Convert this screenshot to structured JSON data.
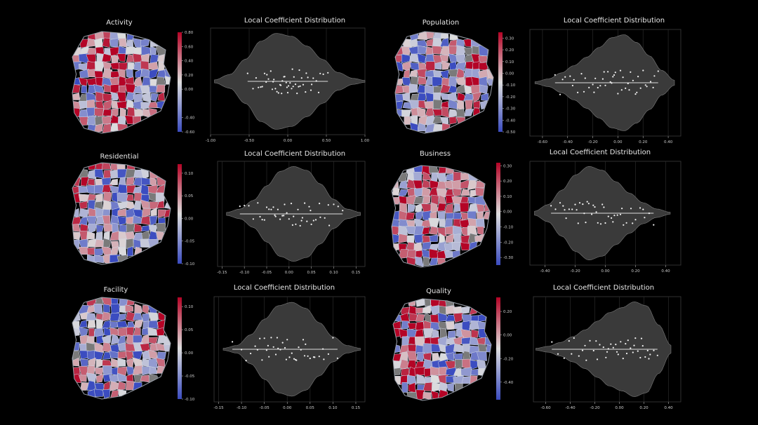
{
  "colors": {
    "background": "#000000",
    "violin_fill": "#3a3a3a",
    "violin_edge": "#7a7a7a",
    "points": "#f2f2f2",
    "plot_border": "#3c3c3c",
    "grid": "#2a2a2a",
    "map_neg": "#3b4cc0",
    "map_mid": "#dddddd",
    "map_pos": "#b40426",
    "map_missing": "#7a7a7a"
  },
  "chart_data": [
    {
      "type": "violin",
      "map_title": "Activity",
      "title": "Local Coefficient Distribution",
      "xlim": [
        -1.0,
        1.0
      ],
      "xticks": [
        "-1.00",
        "-0.50",
        "0.00",
        "0.50",
        "1.00"
      ],
      "xtick_values": [
        -1.0,
        -0.5,
        0.0,
        0.5,
        1.0
      ],
      "colorbar": {
        "range": [
          -0.6,
          0.8
        ],
        "ticks": [
          "0.80",
          "0.60",
          "0.40",
          "0.20",
          "0.00",
          "-0.40",
          "-0.60"
        ],
        "tick_values": [
          0.8,
          0.6,
          0.4,
          0.2,
          0.0,
          -0.4,
          -0.6
        ]
      },
      "density": {
        "x": [
          -0.95,
          -0.75,
          -0.55,
          -0.35,
          -0.15,
          0.05,
          0.25,
          0.45,
          0.65,
          0.85,
          1.0
        ],
        "y": [
          0.03,
          0.14,
          0.45,
          0.82,
          0.98,
          0.92,
          0.72,
          0.45,
          0.18,
          0.06,
          0.02
        ]
      },
      "values": [
        -0.52,
        -0.45,
        -0.41,
        -0.38,
        -0.33,
        -0.3,
        -0.28,
        -0.25,
        -0.22,
        -0.2,
        -0.18,
        -0.16,
        -0.14,
        -0.12,
        -0.1,
        -0.08,
        -0.07,
        -0.05,
        -0.04,
        -0.02,
        0.0,
        0.01,
        0.03,
        0.05,
        0.06,
        0.08,
        0.1,
        0.12,
        0.14,
        0.16,
        0.18,
        0.2,
        0.23,
        0.26,
        0.3,
        0.33,
        0.37,
        0.42,
        0.46,
        0.52,
        -0.35,
        -0.27,
        -0.19,
        -0.09,
        -0.01,
        0.07,
        0.15,
        0.24,
        0.31,
        0.4
      ]
    },
    {
      "type": "violin",
      "map_title": "Population",
      "title": "Local Coefficient Distribution",
      "xlim": [
        -0.7,
        0.5
      ],
      "xticks": [
        "-0.60",
        "-0.40",
        "-0.20",
        "0.00",
        "0.20",
        "0.40"
      ],
      "xtick_values": [
        -0.6,
        -0.4,
        -0.2,
        0.0,
        0.2,
        0.4
      ],
      "colorbar": {
        "range": [
          -0.5,
          0.35
        ],
        "ticks": [
          "0.30",
          "0.20",
          "0.10",
          "0.00",
          "-0.10",
          "-0.20",
          "-0.30",
          "-0.40",
          "-0.50"
        ],
        "tick_values": [
          0.3,
          0.2,
          0.1,
          0.0,
          -0.1,
          -0.2,
          -0.3,
          -0.4,
          -0.5
        ]
      },
      "density": {
        "x": [
          -0.66,
          -0.55,
          -0.45,
          -0.35,
          -0.25,
          -0.15,
          -0.05,
          0.05,
          0.15,
          0.25,
          0.35,
          0.45
        ],
        "y": [
          0.02,
          0.08,
          0.2,
          0.35,
          0.52,
          0.72,
          0.92,
          0.98,
          0.82,
          0.55,
          0.25,
          0.05
        ]
      },
      "values": [
        -0.5,
        -0.46,
        -0.42,
        -0.38,
        -0.35,
        -0.32,
        -0.29,
        -0.26,
        -0.23,
        -0.2,
        -0.18,
        -0.16,
        -0.14,
        -0.12,
        -0.1,
        -0.08,
        -0.06,
        -0.05,
        -0.03,
        -0.02,
        0.0,
        0.02,
        0.04,
        0.06,
        0.08,
        0.1,
        0.12,
        0.14,
        0.16,
        0.18,
        0.2,
        0.23,
        0.26,
        0.29,
        0.32,
        -0.44,
        -0.36,
        -0.27,
        -0.19,
        -0.11,
        -0.04,
        0.03,
        0.09,
        0.15,
        0.22,
        0.28
      ]
    },
    {
      "type": "violin",
      "map_title": "Residential",
      "title": "Local Coefficient Distribution",
      "xlim": [
        -0.16,
        0.17
      ],
      "xticks": [
        "-0.15",
        "-0.10",
        "-0.05",
        "0.00",
        "0.05",
        "0.10",
        "0.15"
      ],
      "xtick_values": [
        -0.15,
        -0.1,
        -0.05,
        0.0,
        0.05,
        0.1,
        0.15
      ],
      "colorbar": {
        "range": [
          -0.1,
          0.12
        ],
        "ticks": [
          "0.10",
          "0.05",
          "0.00",
          "-0.05",
          "-0.10"
        ],
        "tick_values": [
          0.1,
          0.05,
          0.0,
          -0.05,
          -0.1
        ]
      },
      "density": {
        "x": [
          -0.14,
          -0.11,
          -0.08,
          -0.05,
          -0.02,
          0.01,
          0.04,
          0.07,
          0.1,
          0.13,
          0.16
        ],
        "y": [
          0.03,
          0.1,
          0.28,
          0.58,
          0.88,
          0.98,
          0.9,
          0.62,
          0.3,
          0.1,
          0.03
        ]
      },
      "values": [
        -0.11,
        -0.1,
        -0.09,
        -0.08,
        -0.07,
        -0.065,
        -0.06,
        -0.05,
        -0.045,
        -0.04,
        -0.035,
        -0.03,
        -0.025,
        -0.02,
        -0.015,
        -0.01,
        -0.005,
        0.0,
        0.005,
        0.01,
        0.015,
        0.02,
        0.025,
        0.03,
        0.035,
        0.04,
        0.045,
        0.05,
        0.055,
        0.06,
        0.07,
        0.08,
        0.09,
        0.1,
        0.11,
        0.12,
        -0.055,
        -0.032,
        -0.012,
        0.008,
        0.028,
        0.048,
        0.068,
        0.088
      ]
    },
    {
      "type": "violin",
      "map_title": "Business",
      "title": "Local Coefficient Distribution",
      "xlim": [
        -0.5,
        0.5
      ],
      "xticks": [
        "-0.40",
        "-0.20",
        "0.00",
        "0.20",
        "0.40"
      ],
      "xtick_values": [
        -0.4,
        -0.2,
        0.0,
        0.2,
        0.4
      ],
      "colorbar": {
        "range": [
          -0.35,
          0.32
        ],
        "ticks": [
          "0.30",
          "0.20",
          "0.10",
          "0.00",
          "-0.10",
          "-0.20",
          "-0.30"
        ],
        "tick_values": [
          0.3,
          0.2,
          0.1,
          0.0,
          -0.1,
          -0.2,
          -0.3
        ]
      },
      "density": {
        "x": [
          -0.47,
          -0.38,
          -0.29,
          -0.2,
          -0.11,
          -0.02,
          0.07,
          0.16,
          0.25,
          0.34,
          0.43
        ],
        "y": [
          0.04,
          0.18,
          0.48,
          0.8,
          0.98,
          0.9,
          0.66,
          0.42,
          0.22,
          0.09,
          0.02
        ]
      },
      "values": [
        -0.36,
        -0.33,
        -0.3,
        -0.28,
        -0.26,
        -0.24,
        -0.22,
        -0.2,
        -0.18,
        -0.17,
        -0.15,
        -0.14,
        -0.12,
        -0.11,
        -0.09,
        -0.08,
        -0.06,
        -0.05,
        -0.03,
        -0.02,
        0.0,
        0.02,
        0.04,
        0.06,
        0.08,
        0.1,
        0.12,
        0.14,
        0.17,
        0.2,
        0.23,
        0.26,
        0.29,
        0.32,
        -0.27,
        -0.19,
        -0.13,
        -0.07,
        -0.01,
        0.05,
        0.11,
        0.18,
        0.25
      ]
    },
    {
      "type": "violin",
      "map_title": "Facility",
      "title": "Local Coefficient Distribution",
      "xlim": [
        -0.16,
        0.17
      ],
      "xticks": [
        "-0.15",
        "-0.10",
        "-0.05",
        "0.00",
        "0.05",
        "0.10",
        "0.15"
      ],
      "xtick_values": [
        -0.15,
        -0.1,
        -0.05,
        0.0,
        0.05,
        0.1,
        0.15
      ],
      "colorbar": {
        "range": [
          -0.1,
          0.12
        ],
        "ticks": [
          "0.10",
          "0.05",
          "0.00",
          "-0.05",
          "-0.10"
        ],
        "tick_values": [
          0.1,
          0.05,
          0.0,
          -0.05,
          -0.1
        ]
      },
      "density": {
        "x": [
          -0.14,
          -0.11,
          -0.08,
          -0.05,
          -0.02,
          0.01,
          0.04,
          0.07,
          0.1,
          0.13,
          0.16
        ],
        "y": [
          0.02,
          0.08,
          0.3,
          0.62,
          0.9,
          0.97,
          0.85,
          0.55,
          0.26,
          0.08,
          0.02
        ]
      },
      "values": [
        -0.12,
        -0.1,
        -0.09,
        -0.08,
        -0.07,
        -0.06,
        -0.055,
        -0.05,
        -0.045,
        -0.04,
        -0.035,
        -0.03,
        -0.025,
        -0.02,
        -0.015,
        -0.01,
        -0.005,
        0.0,
        0.005,
        0.01,
        0.015,
        0.02,
        0.025,
        0.03,
        0.035,
        0.04,
        0.045,
        0.05,
        0.06,
        0.07,
        0.08,
        0.09,
        0.1,
        0.11,
        -0.065,
        -0.042,
        -0.022,
        -0.002,
        0.018,
        0.038,
        0.058,
        0.078
      ]
    },
    {
      "type": "violin",
      "map_title": "Quality",
      "title": "Local Coefficient Distribution",
      "xlim": [
        -0.7,
        0.5
      ],
      "xticks": [
        "-0.60",
        "-0.40",
        "-0.20",
        "0.00",
        "0.20",
        "0.40"
      ],
      "xtick_values": [
        -0.6,
        -0.4,
        -0.2,
        0.0,
        0.2,
        0.4
      ],
      "colorbar": {
        "range": [
          -0.55,
          0.32
        ],
        "ticks": [
          "0.20",
          "0.00",
          "-0.20",
          "-0.40"
        ],
        "tick_values": [
          0.2,
          0.0,
          -0.2,
          -0.4
        ]
      },
      "density": {
        "x": [
          -0.68,
          -0.58,
          -0.48,
          -0.38,
          -0.28,
          -0.18,
          -0.08,
          0.02,
          0.12,
          0.22,
          0.32,
          0.42
        ],
        "y": [
          0.02,
          0.06,
          0.14,
          0.26,
          0.4,
          0.58,
          0.76,
          0.86,
          0.98,
          0.9,
          0.5,
          0.08
        ]
      },
      "values": [
        -0.55,
        -0.5,
        -0.45,
        -0.41,
        -0.37,
        -0.33,
        -0.3,
        -0.27,
        -0.24,
        -0.21,
        -0.18,
        -0.16,
        -0.13,
        -0.11,
        -0.09,
        -0.07,
        -0.05,
        -0.03,
        -0.01,
        0.01,
        0.03,
        0.05,
        0.07,
        0.09,
        0.11,
        0.13,
        0.15,
        0.17,
        0.19,
        0.21,
        0.23,
        0.25,
        0.28,
        0.31,
        -0.39,
        -0.28,
        -0.19,
        -0.1,
        -0.02,
        0.06,
        0.12,
        0.18,
        0.24
      ]
    }
  ]
}
